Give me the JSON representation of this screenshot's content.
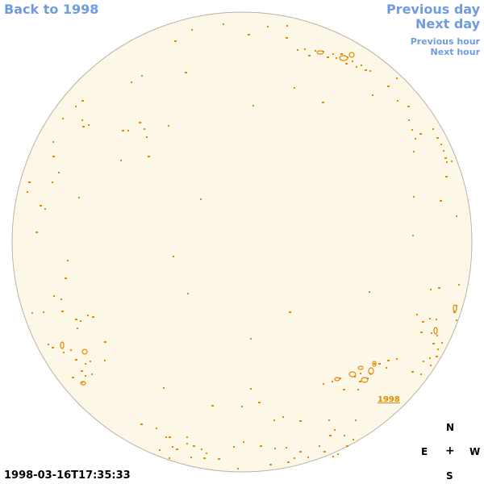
{
  "nav": {
    "back": "Back to 1998",
    "prev_day": "Previous day",
    "next_day": "Next day",
    "prev_hour": "Previous hour",
    "next_hour": "Next hour"
  },
  "region_label": "1998",
  "compass": {
    "north": "N",
    "east": "E",
    "center": "+",
    "west": "W",
    "south": "S"
  },
  "timestamp": "1998-03-16T17:35:33",
  "colors": {
    "disk_fill": "#fdf7e7",
    "disk_edge": "#b9b2a6",
    "feature": "#e48a00",
    "nav": "#6f9be0"
  }
}
